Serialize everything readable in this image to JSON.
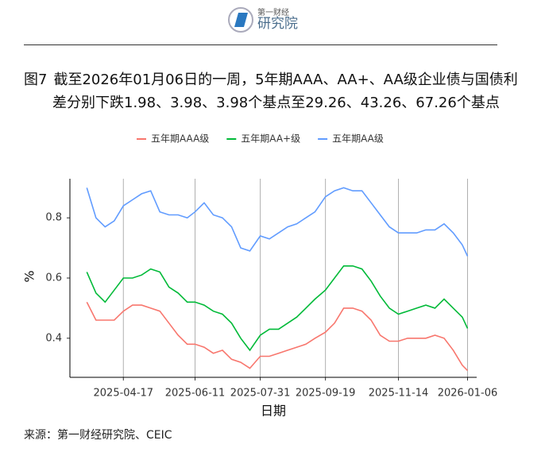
{
  "header": {
    "logo_top": "第一财经",
    "logo_bottom": "研究院"
  },
  "figure_label": "图7",
  "figure_title": "截至2026年01月06日的一周，5年期AAA、AA+、AA级企业债与国债利差分别下跌1.98、3.98、3.98个基点至29.26、43.26、67.26个基点",
  "chart_data": {
    "type": "line",
    "xlabel": "日期",
    "ylabel": "%",
    "x": [
      "2025-03-20",
      "2025-03-27",
      "2025-04-03",
      "2025-04-10",
      "2025-04-17",
      "2025-04-24",
      "2025-05-01",
      "2025-05-08",
      "2025-05-15",
      "2025-05-22",
      "2025-05-29",
      "2025-06-05",
      "2025-06-11",
      "2025-06-18",
      "2025-06-25",
      "2025-07-02",
      "2025-07-09",
      "2025-07-16",
      "2025-07-23",
      "2025-07-31",
      "2025-08-07",
      "2025-08-14",
      "2025-08-21",
      "2025-08-28",
      "2025-09-04",
      "2025-09-11",
      "2025-09-19",
      "2025-09-26",
      "2025-10-03",
      "2025-10-10",
      "2025-10-17",
      "2025-10-24",
      "2025-10-31",
      "2025-11-07",
      "2025-11-14",
      "2025-11-21",
      "2025-11-28",
      "2025-12-05",
      "2025-12-12",
      "2025-12-19",
      "2025-12-26",
      "2026-01-02",
      "2026-01-06"
    ],
    "series": [
      {
        "name": "五年期AAA级",
        "color": "#f8766d",
        "values": [
          0.52,
          0.46,
          0.46,
          0.46,
          0.49,
          0.51,
          0.51,
          0.5,
          0.49,
          0.45,
          0.41,
          0.38,
          0.38,
          0.37,
          0.35,
          0.36,
          0.33,
          0.32,
          0.3,
          0.34,
          0.34,
          0.35,
          0.36,
          0.37,
          0.38,
          0.4,
          0.42,
          0.45,
          0.5,
          0.5,
          0.49,
          0.46,
          0.41,
          0.39,
          0.39,
          0.4,
          0.4,
          0.4,
          0.41,
          0.4,
          0.36,
          0.31,
          0.2926
        ]
      },
      {
        "name": "五年期AA+级",
        "color": "#00ba38",
        "values": [
          0.62,
          0.55,
          0.52,
          0.56,
          0.6,
          0.6,
          0.61,
          0.63,
          0.62,
          0.57,
          0.55,
          0.52,
          0.52,
          0.51,
          0.49,
          0.48,
          0.45,
          0.4,
          0.36,
          0.41,
          0.43,
          0.43,
          0.45,
          0.47,
          0.5,
          0.53,
          0.56,
          0.6,
          0.64,
          0.64,
          0.63,
          0.59,
          0.54,
          0.5,
          0.48,
          0.49,
          0.5,
          0.51,
          0.5,
          0.53,
          0.5,
          0.47,
          0.4326
        ]
      },
      {
        "name": "五年期AA级",
        "color": "#619cff",
        "values": [
          0.9,
          0.8,
          0.77,
          0.79,
          0.84,
          0.86,
          0.88,
          0.89,
          0.82,
          0.81,
          0.81,
          0.8,
          0.82,
          0.85,
          0.81,
          0.8,
          0.77,
          0.7,
          0.69,
          0.74,
          0.73,
          0.75,
          0.77,
          0.78,
          0.8,
          0.82,
          0.87,
          0.89,
          0.9,
          0.89,
          0.89,
          0.85,
          0.81,
          0.77,
          0.75,
          0.75,
          0.75,
          0.76,
          0.76,
          0.78,
          0.75,
          0.71,
          0.6726
        ]
      }
    ],
    "xlim": [
      "2025-03-07",
      "2026-01-13"
    ],
    "xticks": [
      "2025-04-17",
      "2025-06-11",
      "2025-07-31",
      "2025-09-19",
      "2025-11-14",
      "2026-01-06"
    ],
    "ylim": [
      0.27,
      0.93
    ],
    "yticks": [
      0.4,
      0.6,
      0.8
    ],
    "x_grid": true
  },
  "source": "来源：第一财经研究院、CEIC"
}
